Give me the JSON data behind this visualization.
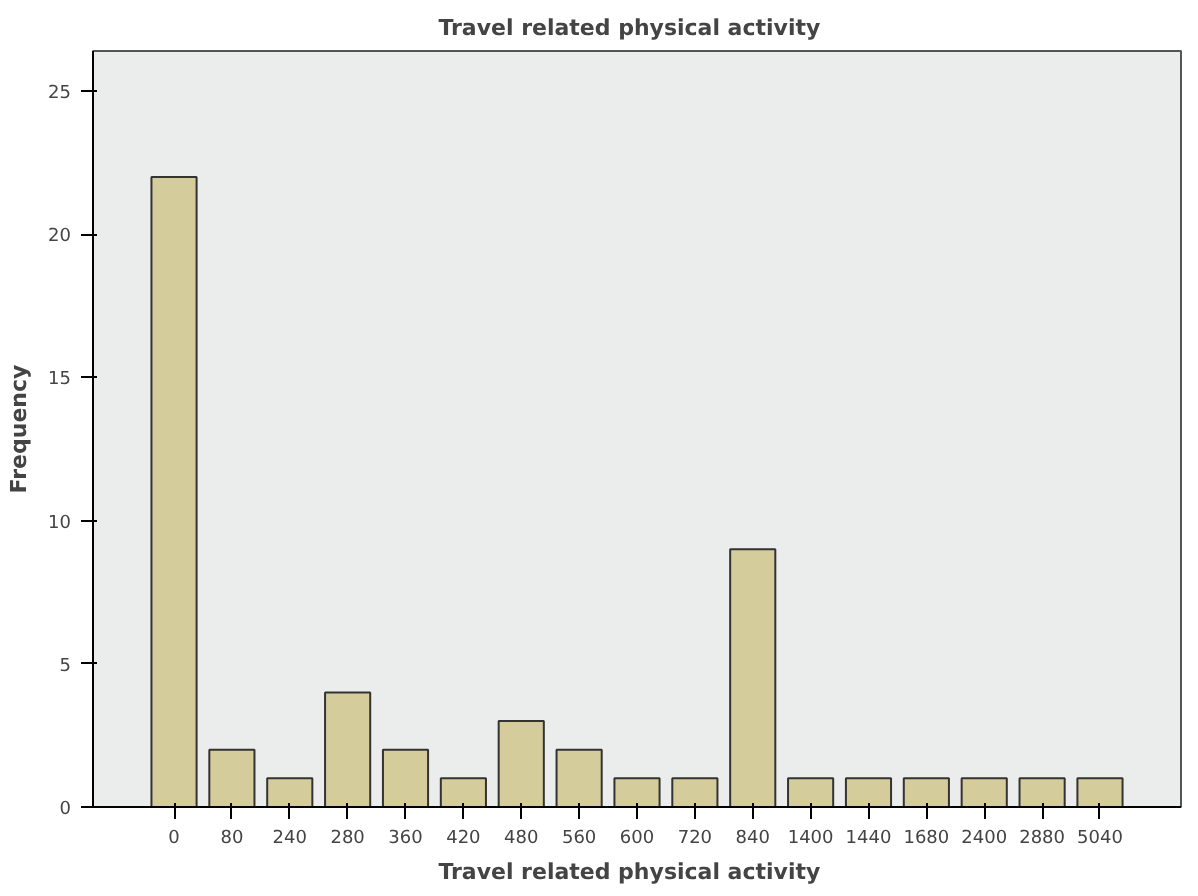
{
  "chart_data": {
    "type": "bar",
    "title": "Travel  related physical  activity",
    "xlabel": "Travel  related physical  activity",
    "ylabel": "Frequency",
    "categories": [
      "0",
      "80",
      "240",
      "280",
      "360",
      "420",
      "480",
      "560",
      "600",
      "720",
      "840",
      "1400",
      "1440",
      "1680",
      "2400",
      "2880",
      "5040"
    ],
    "values": [
      22,
      2,
      1,
      4,
      2,
      1,
      3,
      2,
      1,
      1,
      9,
      1,
      1,
      1,
      1,
      1,
      1
    ],
    "color": "#d5cc9c",
    "ylim": [
      0,
      26.4
    ],
    "yticks": [
      0,
      5,
      10,
      15,
      20,
      25
    ],
    "grid": false
  }
}
